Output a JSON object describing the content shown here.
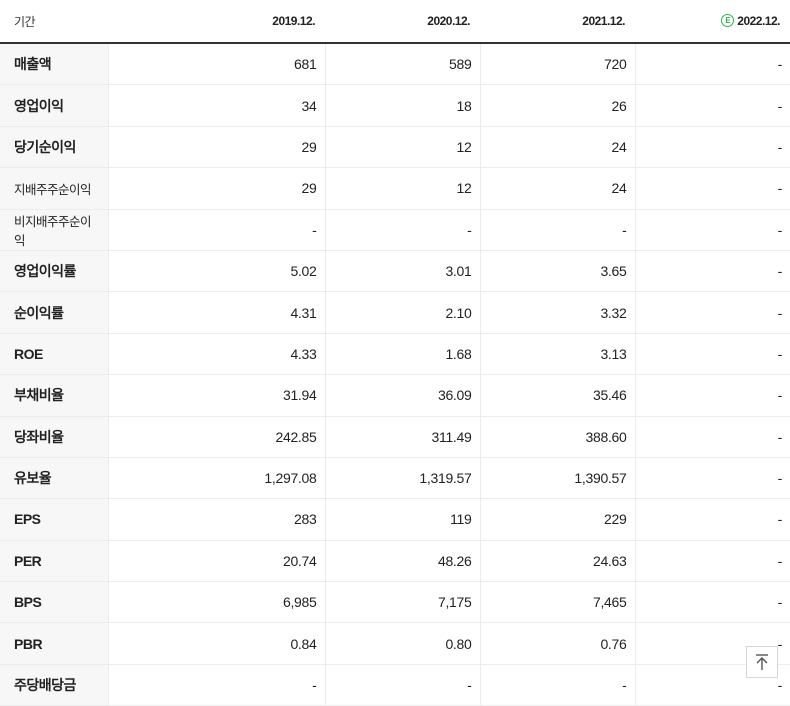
{
  "table": {
    "header": {
      "label": "기간",
      "periods": [
        "2019.12.",
        "2020.12.",
        "2021.12.",
        "2022.12."
      ],
      "estimate_badge": "E"
    },
    "rows": [
      {
        "label": "매출액",
        "values": [
          "681",
          "589",
          "720",
          "-"
        ],
        "small": false,
        "group_start": false
      },
      {
        "label": "영업이익",
        "values": [
          "34",
          "18",
          "26",
          "-"
        ],
        "small": false,
        "group_start": false
      },
      {
        "label": "당기순이익",
        "values": [
          "29",
          "12",
          "24",
          "-"
        ],
        "small": false,
        "group_start": false
      },
      {
        "label": "지배주주순이익",
        "values": [
          "29",
          "12",
          "24",
          "-"
        ],
        "small": true,
        "group_start": false
      },
      {
        "label": "비지배주주순이익",
        "values": [
          "-",
          "-",
          "-",
          "-"
        ],
        "small": true,
        "group_start": false
      },
      {
        "label": "영업이익률",
        "values": [
          "5.02",
          "3.01",
          "3.65",
          "-"
        ],
        "small": false,
        "group_start": true
      },
      {
        "label": "순이익률",
        "values": [
          "4.31",
          "2.10",
          "3.32",
          "-"
        ],
        "small": false,
        "group_start": false
      },
      {
        "label": "ROE",
        "values": [
          "4.33",
          "1.68",
          "3.13",
          "-"
        ],
        "small": false,
        "group_start": false
      },
      {
        "label": "부채비율",
        "values": [
          "31.94",
          "36.09",
          "35.46",
          "-"
        ],
        "small": false,
        "group_start": true
      },
      {
        "label": "당좌비율",
        "values": [
          "242.85",
          "311.49",
          "388.60",
          "-"
        ],
        "small": false,
        "group_start": false
      },
      {
        "label": "유보율",
        "values": [
          "1,297.08",
          "1,319.57",
          "1,390.57",
          "-"
        ],
        "small": false,
        "group_start": false
      },
      {
        "label": "EPS",
        "values": [
          "283",
          "119",
          "229",
          "-"
        ],
        "small": false,
        "group_start": true
      },
      {
        "label": "PER",
        "values": [
          "20.74",
          "48.26",
          "24.63",
          "-"
        ],
        "small": false,
        "group_start": false
      },
      {
        "label": "BPS",
        "values": [
          "6,985",
          "7,175",
          "7,465",
          "-"
        ],
        "small": false,
        "group_start": false
      },
      {
        "label": "PBR",
        "values": [
          "0.84",
          "0.80",
          "0.76",
          "-"
        ],
        "small": false,
        "group_start": false
      },
      {
        "label": "주당배당금",
        "values": [
          "-",
          "-",
          "-",
          "-"
        ],
        "small": false,
        "group_start": true
      }
    ]
  },
  "scroll_top": {
    "icon": "arrow-up-to-top-icon"
  },
  "colors": {
    "estimate_accent": "#2db54b",
    "label_bg": "#f7f7f7"
  }
}
